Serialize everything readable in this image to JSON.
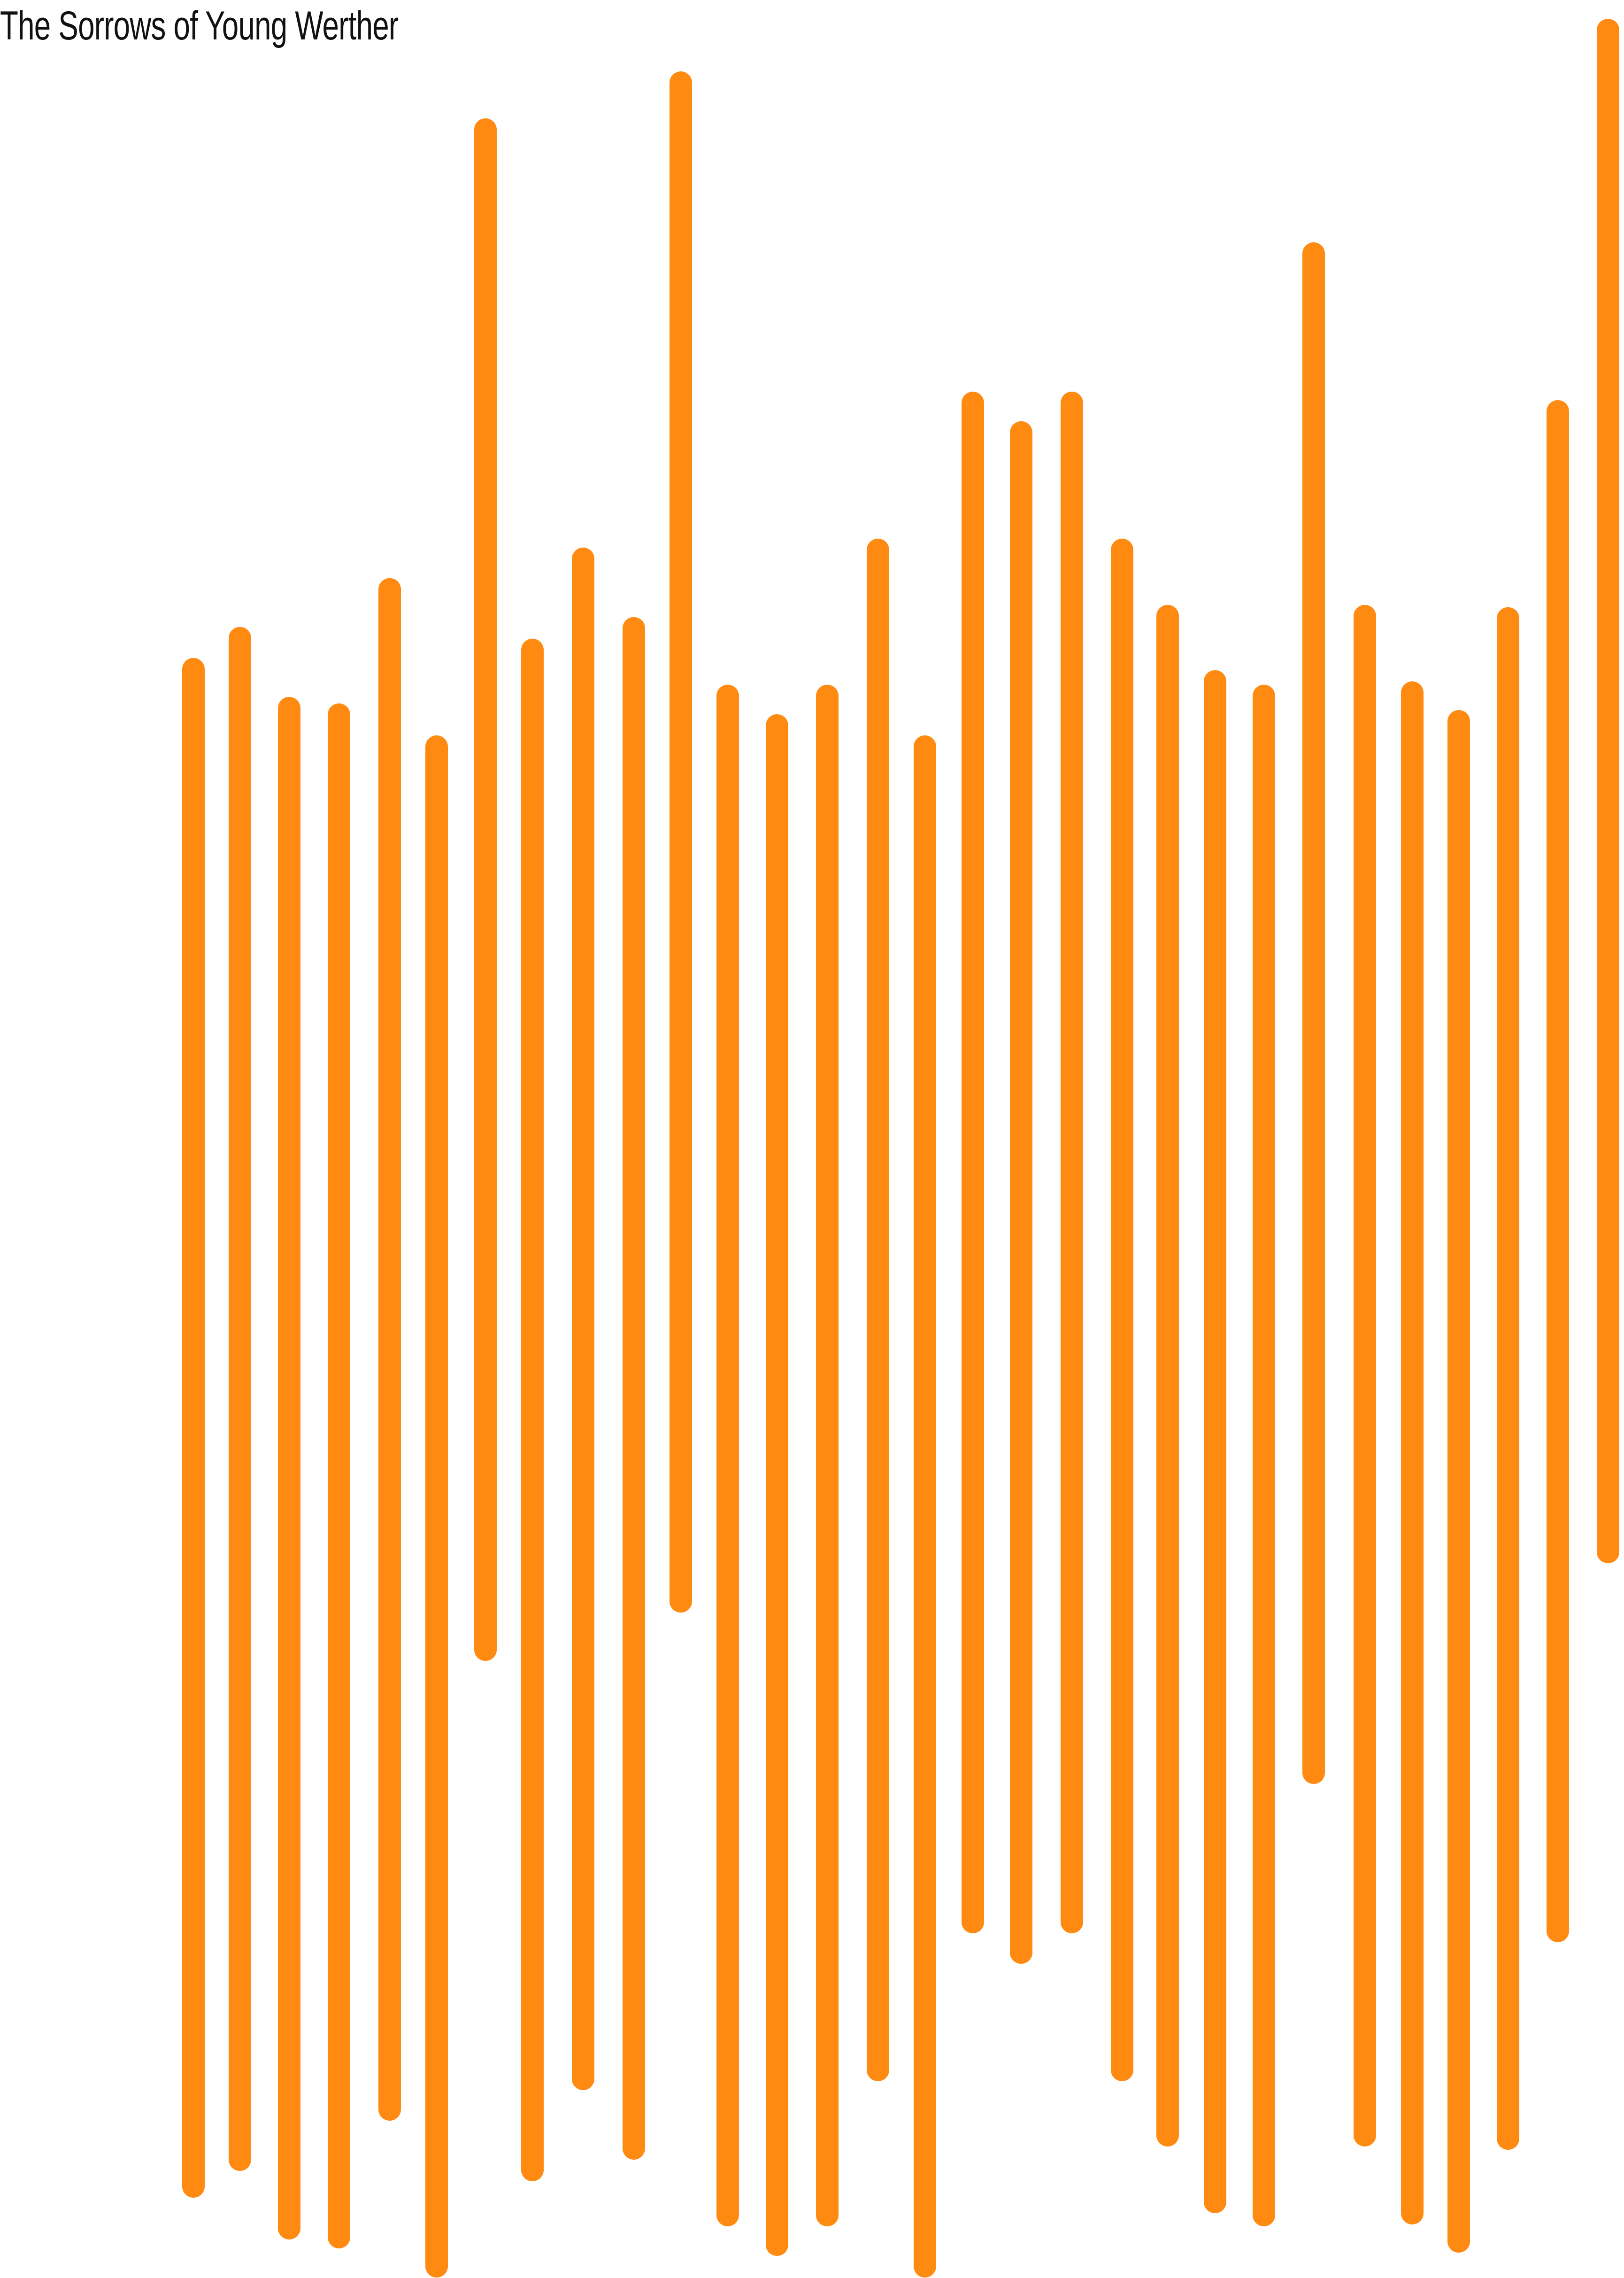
{
  "title": "The Sorrows of Young Werther",
  "colors": {
    "background": "#ffffff",
    "bar": "#ff8a12",
    "title": "#111111"
  }
}
